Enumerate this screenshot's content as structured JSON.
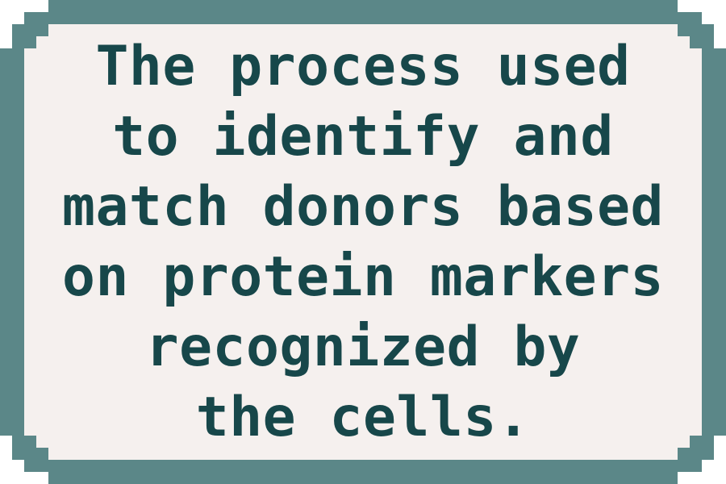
{
  "card": {
    "lines": [
      "The process used",
      "to identify and",
      "match donors based",
      "on protein markers",
      "recognized by",
      "the cells."
    ]
  },
  "colors": {
    "frame": "#5b8788",
    "background": "#f5f0ee",
    "text": "#17474a"
  }
}
